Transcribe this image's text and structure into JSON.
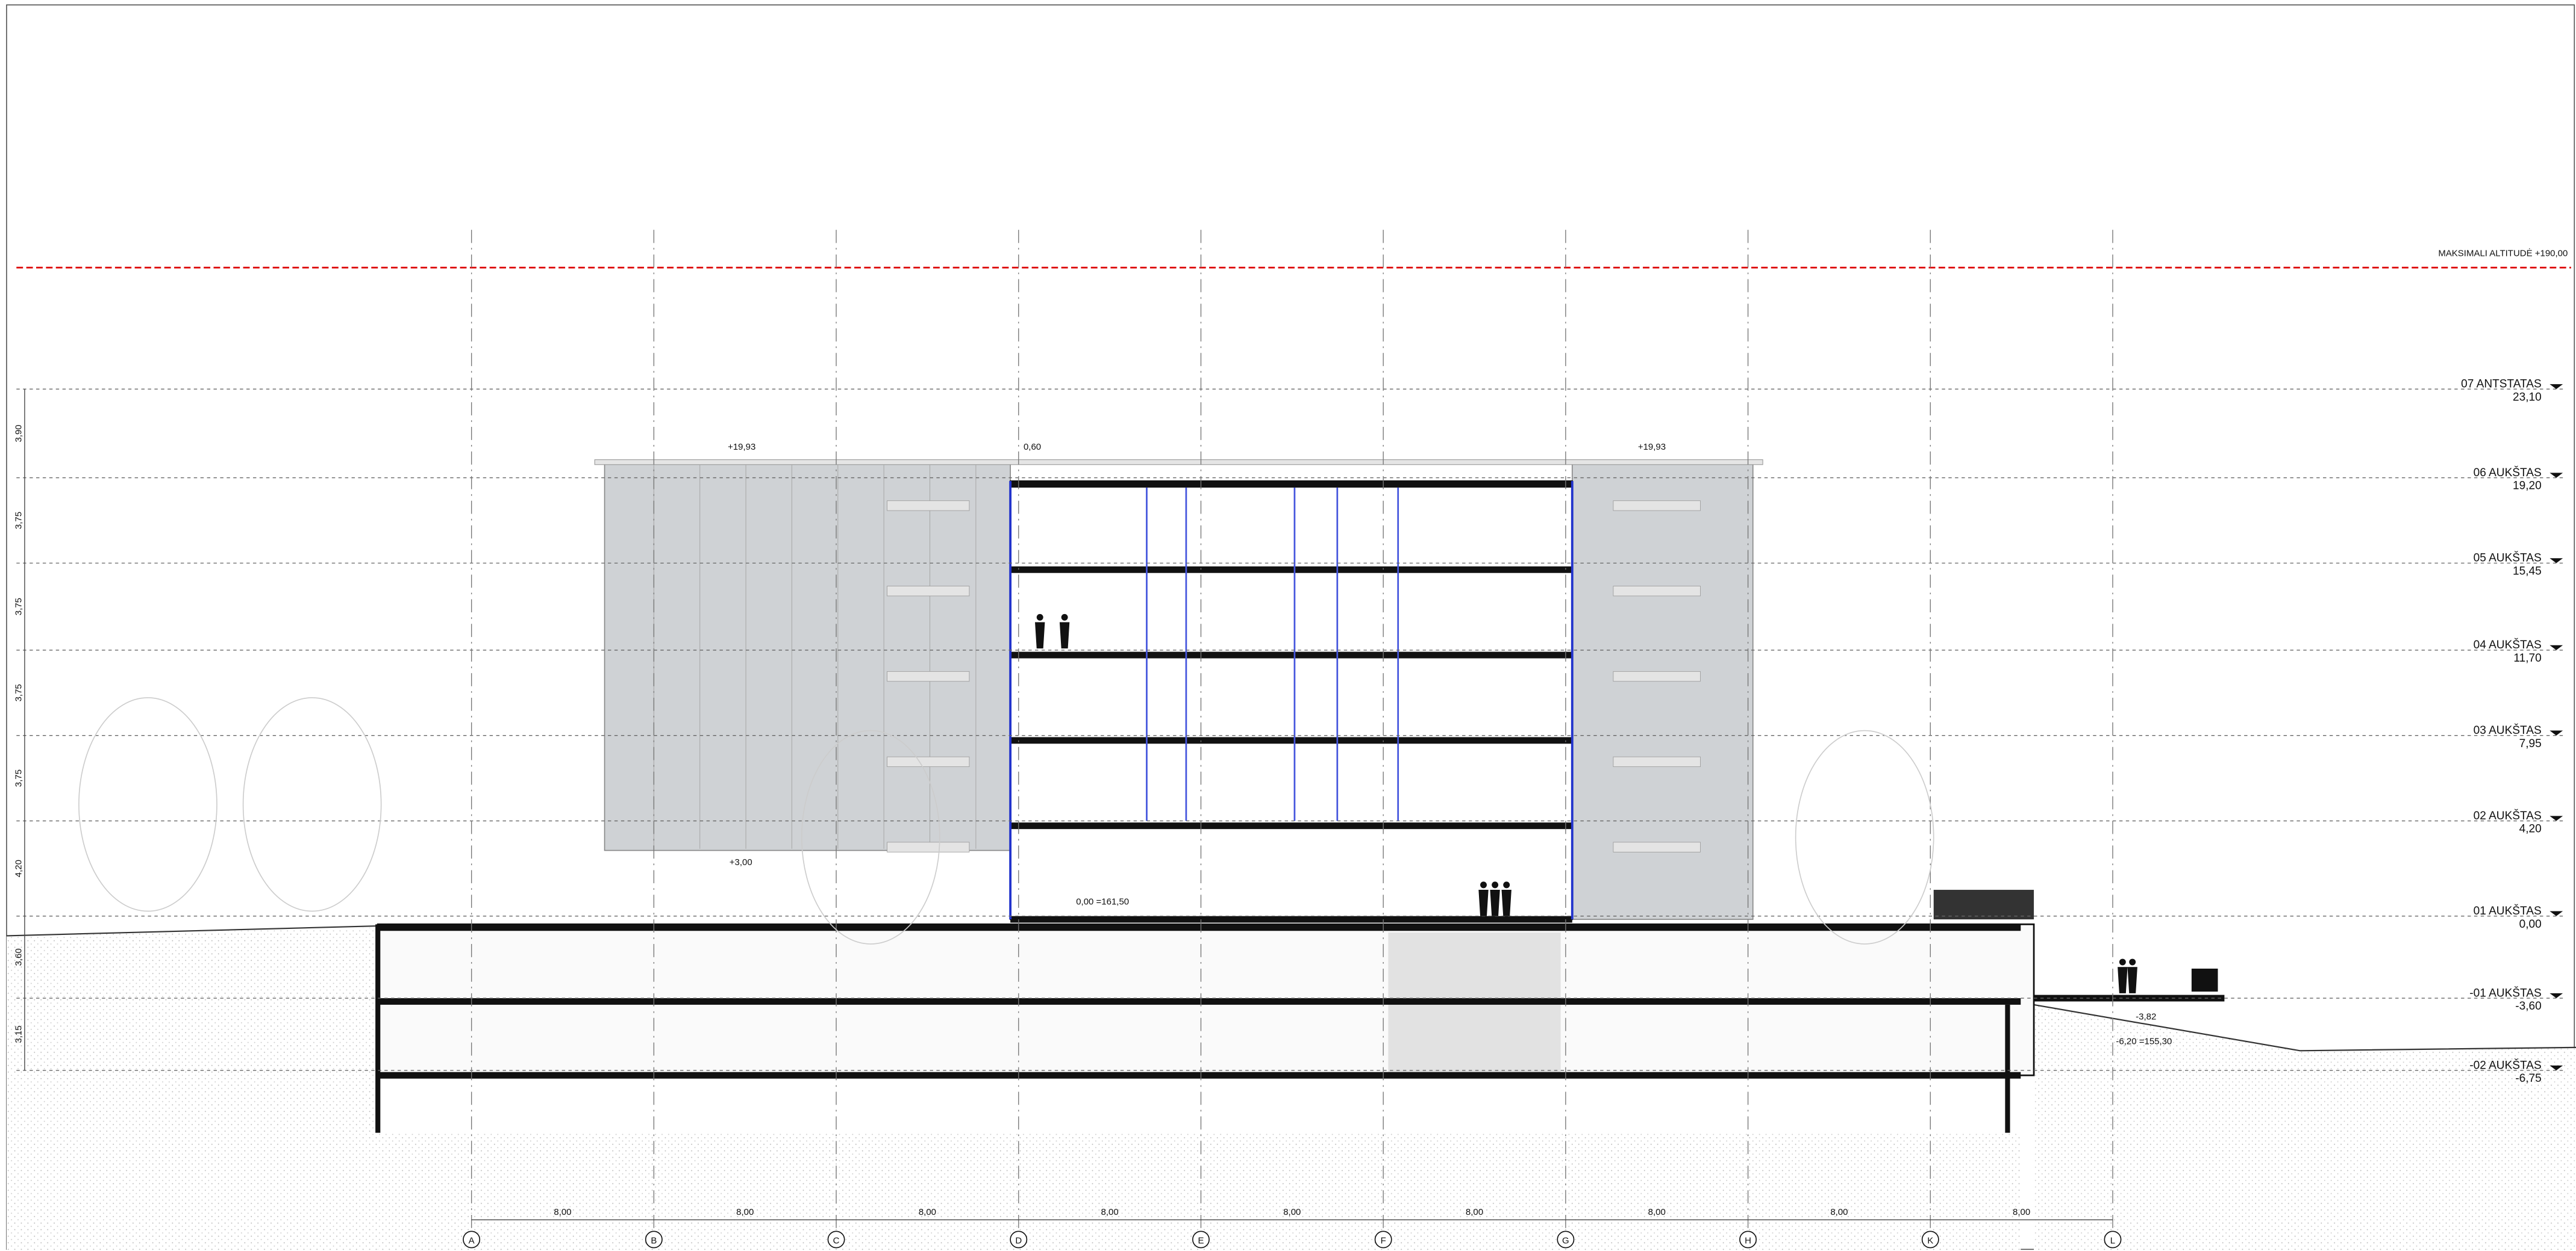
{
  "max_altitude": "MAKSIMALI ALTITUDĖ +190,00",
  "levels": [
    {
      "name": "07 ANTSTATAS",
      "elevation": "23,10"
    },
    {
      "name": "06 AUKŠTAS",
      "elevation": "19,20"
    },
    {
      "name": "05 AUKŠTAS",
      "elevation": "15,45"
    },
    {
      "name": "04 AUKŠTAS",
      "elevation": "11,70"
    },
    {
      "name": "03 AUKŠTAS",
      "elevation": "7,95"
    },
    {
      "name": "02 AUKŠTAS",
      "elevation": "4,20"
    },
    {
      "name": "01 AUKŠTAS",
      "elevation": "0,00"
    },
    {
      "name": "-01 AUKŠTAS",
      "elevation": "-3,60"
    },
    {
      "name": "-02 AUKŠTAS",
      "elevation": "-6,75"
    }
  ],
  "level_heights": [
    "3,90",
    "3,75",
    "3,75",
    "3,75",
    "3,75",
    "4,20",
    "3,60",
    "3,15"
  ],
  "axes": [
    "A",
    "B",
    "C",
    "D",
    "E",
    "F",
    "G",
    "H",
    "K",
    "L"
  ],
  "axis_spacings": [
    "8,00",
    "8,00",
    "8,00",
    "8,00",
    "8,00",
    "8,00",
    "8,00",
    "8,00",
    "8,00"
  ],
  "annotations": {
    "roof_left": "+19,93",
    "roof_right": "+19,93",
    "canopy": "+3,00",
    "ground": "0,00 =161,50",
    "terrace": "-3,82",
    "yard": "-6,20 =155,30",
    "parapet": "0,60"
  }
}
